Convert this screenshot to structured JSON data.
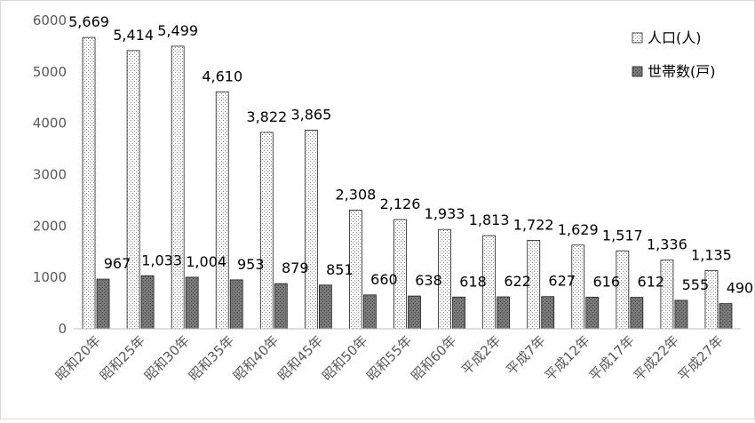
{
  "chart_data": {
    "type": "bar",
    "categories": [
      "昭和20年",
      "昭和25年",
      "昭和30年",
      "昭和35年",
      "昭和40年",
      "昭和45年",
      "昭和50年",
      "昭和55年",
      "昭和60年",
      "平成2年",
      "平成7年",
      "平成12年",
      "平成17年",
      "平成22年",
      "平成27年"
    ],
    "series": [
      {
        "name": "人口(人)",
        "values": [
          5669,
          5414,
          5499,
          4610,
          3822,
          3865,
          2308,
          2126,
          1933,
          1813,
          1722,
          1629,
          1517,
          1336,
          1135
        ],
        "labels": [
          "5,669",
          "5,414",
          "5,499",
          "4,610",
          "3,822",
          "3,865",
          "2,308",
          "2,126",
          "1,933",
          "1,813",
          "1,722",
          "1,629",
          "1,517",
          "1,336",
          "1,135"
        ],
        "pattern": "dotted",
        "color": "#ffffff"
      },
      {
        "name": "世帯数(戸)",
        "values": [
          967,
          1033,
          1004,
          953,
          879,
          851,
          660,
          638,
          618,
          622,
          627,
          616,
          612,
          555,
          490
        ],
        "labels": [
          "967",
          "1,033",
          "1,004",
          "953",
          "879",
          "851",
          "660",
          "638",
          "618",
          "622",
          "627",
          "616",
          "612",
          "555",
          "490"
        ],
        "pattern": "dark-dotted",
        "color": "#7f7f7f"
      }
    ],
    "yticks": [
      "0",
      "1000",
      "2000",
      "3000",
      "4000",
      "5000",
      "6000"
    ],
    "ylim": [
      0,
      6000
    ],
    "grid": false,
    "legend": "top-right",
    "title": "",
    "xlabel": "",
    "ylabel": ""
  }
}
